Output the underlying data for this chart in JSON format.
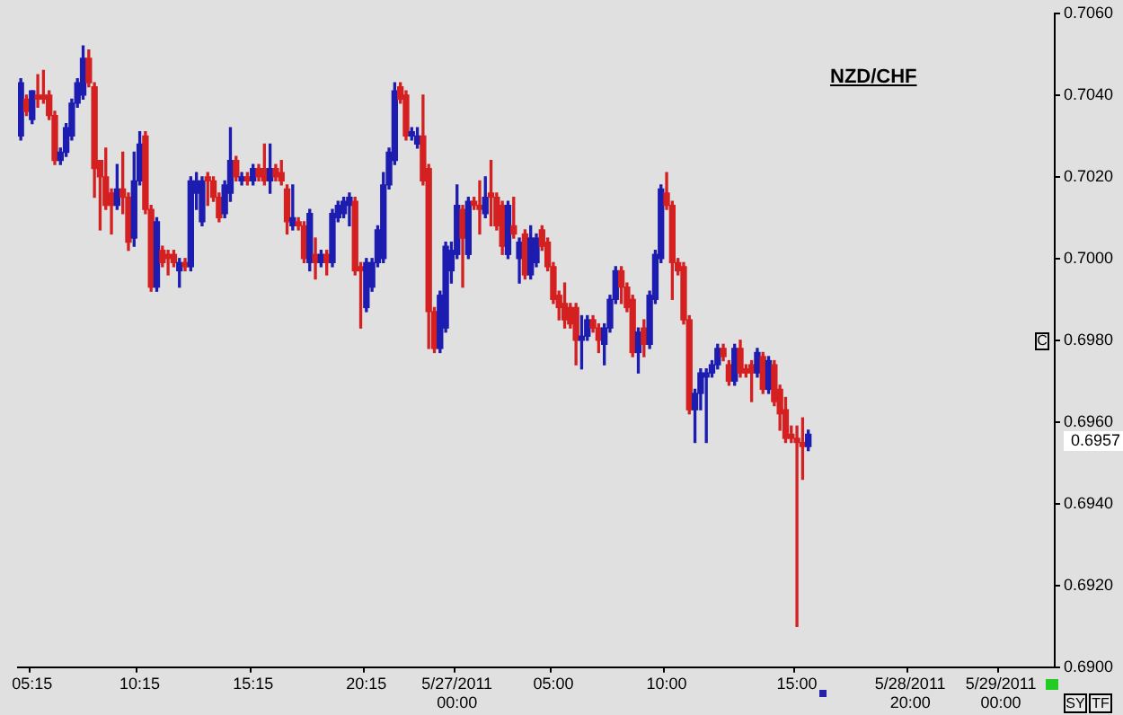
{
  "chart_data": {
    "type": "candlestick",
    "title": "NZD/CHF",
    "categories": [
      null,
      null,
      "05:15",
      null,
      null,
      null,
      null,
      null,
      null,
      null,
      null,
      null,
      null,
      null,
      null,
      null,
      null,
      null,
      null,
      null,
      null,
      "10:15",
      null,
      null,
      null,
      null,
      null,
      null,
      null,
      null,
      null,
      null,
      null,
      null,
      null,
      null,
      null,
      null,
      null,
      null,
      null,
      "15:15",
      null,
      null,
      null,
      null,
      null,
      null,
      null,
      null,
      null,
      null,
      null,
      null,
      null,
      null,
      null,
      null,
      null,
      null,
      null,
      "20:15",
      null,
      null,
      null,
      null,
      null,
      null,
      null,
      null,
      null,
      null,
      null,
      null,
      null,
      null,
      null,
      "5/27/2011 00:00",
      null,
      null,
      null,
      null,
      null,
      null,
      null,
      null,
      null,
      null,
      null,
      null,
      null,
      null,
      null,
      null,
      "05:00",
      null,
      null,
      null,
      null,
      null,
      null,
      null,
      null,
      null,
      null,
      null,
      null,
      null,
      null,
      null,
      null,
      null,
      null,
      null,
      "10:00",
      null,
      null,
      null,
      null,
      null,
      null,
      null,
      null,
      null,
      null,
      null,
      null,
      null,
      null,
      null,
      null,
      null,
      null,
      null,
      null,
      null,
      null,
      "15:00",
      null,
      null,
      null,
      null,
      null,
      null,
      null,
      null,
      null,
      null,
      null,
      null,
      null,
      null,
      null,
      null,
      null,
      null,
      null,
      "5/28/2011 20:00",
      null,
      null,
      null,
      null,
      null,
      null,
      null,
      null,
      null,
      null,
      null,
      null,
      null,
      null,
      null,
      "5/29/2011 00:00",
      null,
      null,
      null,
      null,
      null,
      null,
      null,
      null,
      null
    ],
    "ohlc": [
      [
        0.703,
        0.7044,
        0.7029,
        0.7043
      ],
      [
        0.7039,
        0.704,
        0.7035,
        0.7036
      ],
      [
        0.7034,
        0.7041,
        0.7033,
        0.7041
      ],
      [
        0.704,
        0.7045,
        0.7037,
        0.7039
      ],
      [
        0.704,
        0.7046,
        0.7038,
        0.7039
      ],
      [
        0.704,
        0.7041,
        0.7034,
        0.7035
      ],
      [
        0.7035,
        0.7036,
        0.7023,
        0.7024
      ],
      [
        0.7024,
        0.7027,
        0.7023,
        0.7026
      ],
      [
        0.7026,
        0.7033,
        0.7025,
        0.7032
      ],
      [
        0.703,
        0.7039,
        0.7029,
        0.7038
      ],
      [
        0.7038,
        0.7044,
        0.7037,
        0.7043
      ],
      [
        0.704,
        0.7052,
        0.7039,
        0.7049
      ],
      [
        0.7049,
        0.7051,
        0.7042,
        0.7043
      ],
      [
        0.7042,
        0.7043,
        0.7015,
        0.7022
      ],
      [
        0.7024,
        0.7024,
        0.7007,
        0.702
      ],
      [
        0.702,
        0.7027,
        0.7012,
        0.7013
      ],
      [
        0.7016,
        0.7017,
        0.7006,
        0.7013
      ],
      [
        0.7013,
        0.7023,
        0.7012,
        0.7017
      ],
      [
        0.7017,
        0.7026,
        0.7011,
        0.7015
      ],
      [
        0.7015,
        0.7016,
        0.7002,
        0.7004
      ],
      [
        0.7005,
        0.7026,
        0.7003,
        0.7019
      ],
      [
        0.7019,
        0.7031,
        0.7018,
        0.7028
      ],
      [
        0.703,
        0.7031,
        0.7011,
        0.7012
      ],
      [
        0.7012,
        0.7013,
        0.6992,
        0.6993
      ],
      [
        0.6993,
        0.701,
        0.6992,
        0.7009
      ],
      [
        0.7002,
        0.7003,
        0.6998,
        0.6999
      ],
      [
        0.7001,
        0.7002,
        0.6996,
        0.7
      ],
      [
        0.7001,
        0.7002,
        0.6998,
        0.6999
      ],
      [
        0.6997,
        0.7,
        0.6993,
        0.6999
      ],
      [
        0.6999,
        0.7,
        0.6997,
        0.6998
      ],
      [
        0.6998,
        0.702,
        0.6997,
        0.7019
      ],
      [
        0.7016,
        0.7021,
        0.7012,
        0.7019
      ],
      [
        0.7009,
        0.702,
        0.7008,
        0.7019
      ],
      [
        0.702,
        0.7021,
        0.7013,
        0.7019
      ],
      [
        0.7019,
        0.702,
        0.7014,
        0.7015
      ],
      [
        0.7015,
        0.7016,
        0.7009,
        0.701
      ],
      [
        0.7011,
        0.7019,
        0.701,
        0.7018
      ],
      [
        0.7016,
        0.7032,
        0.7014,
        0.7024
      ],
      [
        0.7024,
        0.7025,
        0.7019,
        0.702
      ],
      [
        0.7019,
        0.7021,
        0.7018,
        0.702
      ],
      [
        0.702,
        0.7021,
        0.7018,
        0.7019
      ],
      [
        0.7019,
        0.7023,
        0.7018,
        0.7022
      ],
      [
        0.7022,
        0.7023,
        0.7019,
        0.702
      ],
      [
        0.7022,
        0.7028,
        0.7018,
        0.7019
      ],
      [
        0.7019,
        0.7028,
        0.7016,
        0.7022
      ],
      [
        0.7022,
        0.7023,
        0.7019,
        0.702
      ],
      [
        0.7021,
        0.7024,
        0.7018,
        0.7019
      ],
      [
        0.7017,
        0.7018,
        0.7006,
        0.7009
      ],
      [
        0.7008,
        0.7018,
        0.7007,
        0.701
      ],
      [
        0.7009,
        0.701,
        0.7007,
        0.7008
      ],
      [
        0.7008,
        0.7009,
        0.6999,
        0.7
      ],
      [
        0.6999,
        0.7012,
        0.6997,
        0.7011
      ],
      [
        0.7001,
        0.7005,
        0.6995,
        0.6999
      ],
      [
        0.6999,
        0.7002,
        0.6998,
        0.7001
      ],
      [
        0.7001,
        0.7002,
        0.6996,
        0.6999
      ],
      [
        0.6999,
        0.7012,
        0.6998,
        0.7011
      ],
      [
        0.701,
        0.7014,
        0.7009,
        0.7013
      ],
      [
        0.7011,
        0.7015,
        0.701,
        0.7014
      ],
      [
        0.7013,
        0.7016,
        0.7008,
        0.7015
      ],
      [
        0.7014,
        0.7015,
        0.6996,
        0.6997
      ],
      [
        0.6998,
        0.6999,
        0.6983,
        0.6997
      ],
      [
        0.6988,
        0.7,
        0.6987,
        0.6999
      ],
      [
        0.6993,
        0.7,
        0.6992,
        0.6999
      ],
      [
        0.6999,
        0.7008,
        0.6998,
        0.7007
      ],
      [
        0.7,
        0.7021,
        0.6999,
        0.7018
      ],
      [
        0.7018,
        0.7027,
        0.7017,
        0.7026
      ],
      [
        0.7024,
        0.7043,
        0.7023,
        0.7041
      ],
      [
        0.7042,
        0.7043,
        0.7038,
        0.7039
      ],
      [
        0.704,
        0.7041,
        0.7029,
        0.703
      ],
      [
        0.703,
        0.7032,
        0.7029,
        0.7031
      ],
      [
        0.7028,
        0.7032,
        0.7027,
        0.703
      ],
      [
        0.703,
        0.704,
        0.7018,
        0.7019
      ],
      [
        0.7022,
        0.7023,
        0.6978,
        0.6987
      ],
      [
        0.6987,
        0.6988,
        0.6977,
        0.6978
      ],
      [
        0.6978,
        0.6992,
        0.6977,
        0.6991
      ],
      [
        0.6983,
        0.7004,
        0.6982,
        0.7003
      ],
      [
        0.6997,
        0.7004,
        0.6994,
        0.7002
      ],
      [
        0.7001,
        0.7018,
        0.7,
        0.7013
      ],
      [
        0.7012,
        0.7013,
        0.6993,
        0.7005
      ],
      [
        0.7001,
        0.7015,
        0.7,
        0.7014
      ],
      [
        0.7014,
        0.7015,
        0.7012,
        0.7013
      ],
      [
        0.7013,
        0.7019,
        0.7006,
        0.7012
      ],
      [
        0.7011,
        0.702,
        0.701,
        0.7015
      ],
      [
        0.7016,
        0.7024,
        0.7008,
        0.7015
      ],
      [
        0.7015,
        0.7016,
        0.7007,
        0.7008
      ],
      [
        0.7013,
        0.7014,
        0.7001,
        0.7003
      ],
      [
        0.7001,
        0.7014,
        0.7,
        0.7013
      ],
      [
        0.7008,
        0.7015,
        0.7005,
        0.7006
      ],
      [
        0.7,
        0.7005,
        0.6994,
        0.7004
      ],
      [
        0.7006,
        0.7007,
        0.6995,
        0.6996
      ],
      [
        0.6996,
        0.7008,
        0.6995,
        0.7005
      ],
      [
        0.6999,
        0.7006,
        0.6998,
        0.7005
      ],
      [
        0.7007,
        0.7008,
        0.7002,
        0.7003
      ],
      [
        0.7004,
        0.7005,
        0.6997,
        0.6998
      ],
      [
        0.6998,
        0.6999,
        0.6989,
        0.699
      ],
      [
        0.6991,
        0.6992,
        0.6985,
        0.6988
      ],
      [
        0.6989,
        0.6994,
        0.6983,
        0.6985
      ],
      [
        0.6988,
        0.6989,
        0.6983,
        0.6984
      ],
      [
        0.6988,
        0.6989,
        0.6974,
        0.698
      ],
      [
        0.698,
        0.6986,
        0.6973,
        0.6981
      ],
      [
        0.6981,
        0.6986,
        0.698,
        0.6985
      ],
      [
        0.6985,
        0.6986,
        0.6982,
        0.6983
      ],
      [
        0.6983,
        0.6984,
        0.6977,
        0.698
      ],
      [
        0.6979,
        0.6984,
        0.6974,
        0.6983
      ],
      [
        0.6983,
        0.6991,
        0.6982,
        0.699
      ],
      [
        0.699,
        0.6998,
        0.6989,
        0.6997
      ],
      [
        0.6997,
        0.6998,
        0.6989,
        0.6993
      ],
      [
        0.6993,
        0.6994,
        0.6987,
        0.6988
      ],
      [
        0.699,
        0.6991,
        0.6976,
        0.6977
      ],
      [
        0.6977,
        0.6983,
        0.6972,
        0.6982
      ],
      [
        0.6983,
        0.6985,
        0.6976,
        0.6979
      ],
      [
        0.6979,
        0.6992,
        0.6978,
        0.6991
      ],
      [
        0.699,
        0.7002,
        0.6989,
        0.7001
      ],
      [
        0.7,
        0.7018,
        0.6999,
        0.7017
      ],
      [
        0.7016,
        0.7021,
        0.7012,
        0.7013
      ],
      [
        0.7013,
        0.7014,
        0.699,
        0.6999
      ],
      [
        0.6999,
        0.7,
        0.6996,
        0.6997
      ],
      [
        0.6998,
        0.6999,
        0.6984,
        0.6985
      ],
      [
        0.6985,
        0.6986,
        0.6962,
        0.6963
      ],
      [
        0.6963,
        0.6968,
        0.6955,
        0.6967
      ],
      [
        0.6967,
        0.6973,
        0.6963,
        0.6972
      ],
      [
        0.6971,
        0.6973,
        0.6955,
        0.6972
      ],
      [
        0.6972,
        0.6975,
        0.6971,
        0.6974
      ],
      [
        0.6974,
        0.6979,
        0.6973,
        0.6978
      ],
      [
        0.6978,
        0.6979,
        0.6975,
        0.6976
      ],
      [
        0.6974,
        0.6975,
        0.6969,
        0.697
      ],
      [
        0.697,
        0.6979,
        0.6969,
        0.6978
      ],
      [
        0.6978,
        0.698,
        0.6971,
        0.6972
      ],
      [
        0.6973,
        0.6974,
        0.6971,
        0.6972
      ],
      [
        0.6974,
        0.6975,
        0.6965,
        0.6972
      ],
      [
        0.6972,
        0.6978,
        0.6971,
        0.6977
      ],
      [
        0.6976,
        0.6977,
        0.6967,
        0.6968
      ],
      [
        0.6968,
        0.6976,
        0.6967,
        0.6975
      ],
      [
        0.6974,
        0.6975,
        0.6964,
        0.6965
      ],
      [
        0.6968,
        0.6969,
        0.6958,
        0.6962
      ],
      [
        0.6963,
        0.6966,
        0.6955,
        0.6956
      ],
      [
        0.6957,
        0.6959,
        0.6955,
        0.6956
      ],
      [
        0.6956,
        0.6959,
        0.691,
        0.6955
      ],
      [
        0.6955,
        0.6961,
        0.6946,
        0.6954
      ],
      [
        0.6954,
        0.6958,
        0.6953,
        0.6957
      ],
      null,
      null,
      null,
      null,
      null,
      null,
      null,
      null,
      null,
      null,
      null,
      null,
      null,
      null,
      null,
      null,
      null,
      null,
      null,
      null,
      null,
      null,
      null,
      null,
      null,
      null,
      null,
      null,
      null,
      null,
      null,
      null,
      null,
      null,
      null,
      null,
      null,
      null,
      null,
      null,
      null,
      null,
      null
    ],
    "colors": [
      "#1c1cb0",
      "#d42020",
      "#1c1cb0",
      "#d42020",
      "#d42020",
      "#d42020",
      "#d42020",
      "#1c1cb0",
      "#1c1cb0",
      "#1c1cb0",
      "#1c1cb0",
      "#1c1cb0",
      "#d42020",
      "#d42020",
      "#d42020",
      "#d42020",
      "#d42020",
      "#1c1cb0",
      "#d42020",
      "#d42020",
      "#1c1cb0",
      "#1c1cb0",
      "#d42020",
      "#d42020",
      "#1c1cb0",
      "#d42020",
      "#d42020",
      "#d42020",
      "#1c1cb0",
      "#d42020",
      "#1c1cb0",
      "#1c1cb0",
      "#1c1cb0",
      "#d42020",
      "#d42020",
      "#d42020",
      "#1c1cb0",
      "#1c1cb0",
      "#d42020",
      "#1c1cb0",
      "#d42020",
      "#1c1cb0",
      "#d42020",
      "#d42020",
      "#1c1cb0",
      "#d42020",
      "#d42020",
      "#d42020",
      "#1c1cb0",
      "#d42020",
      "#d42020",
      "#1c1cb0",
      "#d42020",
      "#1c1cb0",
      "#d42020",
      "#1c1cb0",
      "#1c1cb0",
      "#1c1cb0",
      "#1c1cb0",
      "#d42020",
      "#d42020",
      "#1c1cb0",
      "#1c1cb0",
      "#1c1cb0",
      "#1c1cb0",
      "#1c1cb0",
      "#1c1cb0",
      "#d42020",
      "#d42020",
      "#1c1cb0",
      "#1c1cb0",
      "#d42020",
      "#d42020",
      "#d42020",
      "#1c1cb0",
      "#1c1cb0",
      "#1c1cb0",
      "#1c1cb0",
      "#d42020",
      "#1c1cb0",
      "#d42020",
      "#d42020",
      "#1c1cb0",
      "#d42020",
      "#d42020",
      "#d42020",
      "#1c1cb0",
      "#d42020",
      "#1c1cb0",
      "#d42020",
      "#1c1cb0",
      "#1c1cb0",
      "#d42020",
      "#d42020",
      "#d42020",
      "#d42020",
      "#d42020",
      "#d42020",
      "#d42020",
      "#1c1cb0",
      "#1c1cb0",
      "#d42020",
      "#d42020",
      "#1c1cb0",
      "#1c1cb0",
      "#1c1cb0",
      "#d42020",
      "#d42020",
      "#d42020",
      "#1c1cb0",
      "#d42020",
      "#1c1cb0",
      "#1c1cb0",
      "#1c1cb0",
      "#d42020",
      "#d42020",
      "#d42020",
      "#d42020",
      "#d42020",
      "#1c1cb0",
      "#1c1cb0",
      "#1c1cb0",
      "#1c1cb0",
      "#1c1cb0",
      "#d42020",
      "#d42020",
      "#1c1cb0",
      "#d42020",
      "#d42020",
      "#d42020",
      "#1c1cb0",
      "#d42020",
      "#1c1cb0",
      "#d42020",
      "#d42020",
      "#d42020",
      "#d42020",
      "#d42020",
      "#d42020",
      "#1c1cb0",
      null,
      null,
      null,
      null,
      null,
      null,
      null,
      null,
      null,
      null,
      null,
      null,
      null,
      null,
      null,
      null,
      null,
      null,
      null,
      null,
      null,
      null,
      null,
      null,
      null,
      null,
      null,
      null,
      null,
      null,
      null,
      null,
      null,
      null,
      null,
      null,
      null,
      null,
      null,
      null,
      null,
      null,
      null
    ],
    "ylim": [
      0.69,
      0.706
    ],
    "yticks": [
      {
        "value": 0.69,
        "label": "0.6900"
      },
      {
        "value": 0.692,
        "label": "0.6920"
      },
      {
        "value": 0.694,
        "label": "0.6940"
      },
      {
        "value": 0.696,
        "label": "0.6960"
      },
      {
        "value": 0.698,
        "label": "0.6980"
      },
      {
        "value": 0.7,
        "label": "0.7000"
      },
      {
        "value": 0.702,
        "label": "0.7020"
      },
      {
        "value": 0.704,
        "label": "0.7040"
      },
      {
        "value": 0.706,
        "label": "0.7060"
      }
    ],
    "annotations": [
      "0.6957",
      "C",
      "SY",
      "TF"
    ]
  }
}
